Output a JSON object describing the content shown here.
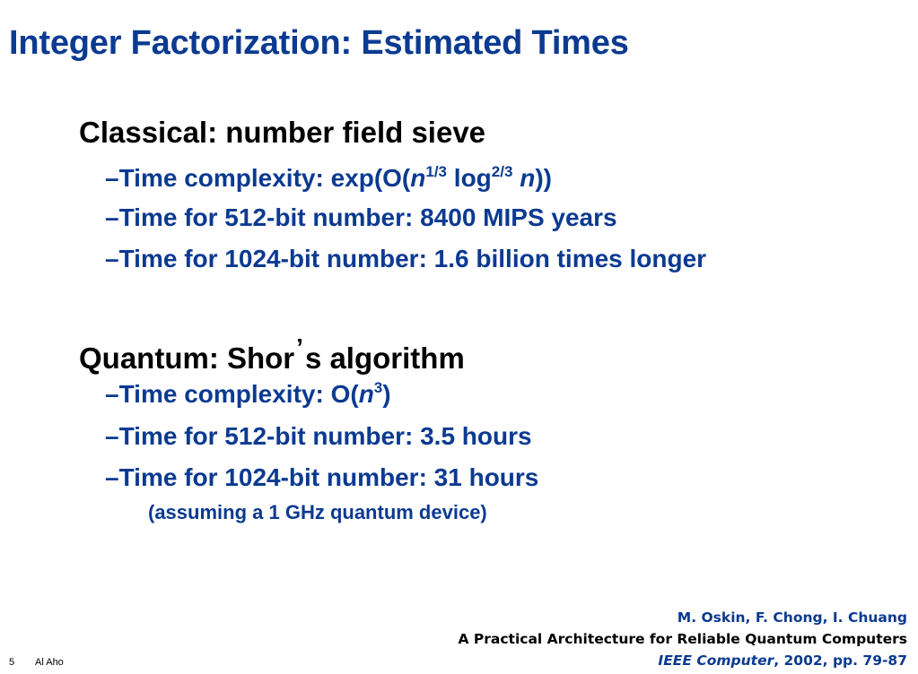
{
  "slide": {
    "title": "Integer Factorization: Estimated Times",
    "sections": [
      {
        "heading": "Classical: number field sieve",
        "bullets": {
          "complexity": {
            "dash": "–",
            "prefix": "Time complexity: exp(O(",
            "var": "n",
            "exp1": "1/3",
            "log": " log",
            "exp2": "2/3",
            "suffix": "))"
          },
          "item2": "–Time for 512-bit number: 8400 MIPS years",
          "item3": "–Time for 1024-bit number: 1.6 billion times longer"
        }
      },
      {
        "heading_pre": "Quantum: Shor",
        "heading_apos": "’",
        "heading_post": "s algorithm",
        "bullets": {
          "complexity": {
            "dash": "–",
            "prefix": "Time complexity: O(",
            "var": "n",
            "exp": "3",
            "suffix": ")"
          },
          "item2": "–Time for 512-bit number: 3.5 hours",
          "item3": "–Time for 1024-bit number: 31 hours",
          "note": "(assuming a 1 GHz quantum device)"
        }
      }
    ],
    "reference": {
      "authors": "M. Oskin, F. Chong, I. Chuang",
      "paper_title": "A Practical Architecture for Reliable Quantum Computers",
      "journal": "IEEE Computer",
      "details": ", 2002,  pp. 79-87"
    },
    "footer": {
      "page_number": "5",
      "author": "Al Aho"
    },
    "colors": {
      "accent": "#0b3a91",
      "heading": "#000000"
    }
  }
}
